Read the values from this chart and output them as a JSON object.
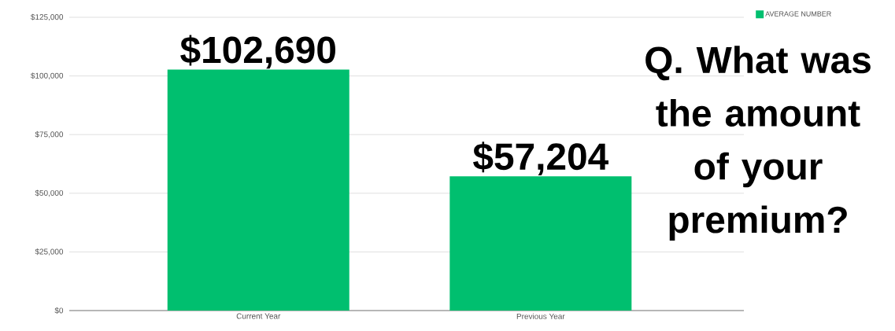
{
  "chart_data": {
    "type": "bar",
    "categories": [
      "Current Year",
      "Previous Year"
    ],
    "series": [
      {
        "name": "AVERAGE NUMBER",
        "color": "#00bf6f",
        "values": [
          102690,
          57204
        ],
        "value_labels": [
          "$102,690",
          "$57,204"
        ]
      }
    ],
    "ylim": [
      0,
      125000
    ],
    "yticks": [
      {
        "value": 0,
        "label": "$0"
      },
      {
        "value": 25000,
        "label": "$25,000"
      },
      {
        "value": 50000,
        "label": "$50,000"
      },
      {
        "value": 75000,
        "label": "$75,000"
      },
      {
        "value": 100000,
        "label": "$100,000"
      },
      {
        "value": 125000,
        "label": "$125,000"
      }
    ],
    "grid": "y",
    "legend": "top right",
    "annotations": [
      "Q. What was the amount of your premium?"
    ]
  }
}
